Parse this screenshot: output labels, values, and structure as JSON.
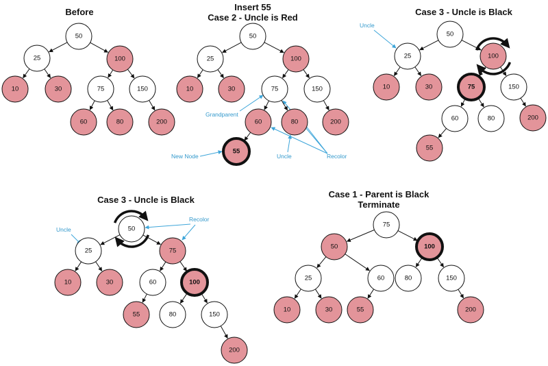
{
  "colors": {
    "red_node": "#e3949a",
    "black_node": "#ffffff",
    "stroke": "#111111",
    "annotation": "#3da5d9",
    "title": "#111111"
  },
  "panels": [
    {
      "id": "before",
      "title_lines": [
        "Before"
      ],
      "nodes": [
        {
          "id": "n50",
          "label": "50",
          "color": "black"
        },
        {
          "id": "n25",
          "label": "25",
          "color": "black"
        },
        {
          "id": "n100",
          "label": "100",
          "color": "red"
        },
        {
          "id": "n10",
          "label": "10",
          "color": "red"
        },
        {
          "id": "n30",
          "label": "30",
          "color": "red"
        },
        {
          "id": "n75",
          "label": "75",
          "color": "black"
        },
        {
          "id": "n150",
          "label": "150",
          "color": "black"
        },
        {
          "id": "n60",
          "label": "60",
          "color": "red"
        },
        {
          "id": "n80",
          "label": "80",
          "color": "red"
        },
        {
          "id": "n200",
          "label": "200",
          "color": "red"
        }
      ],
      "edges": [
        [
          "n50",
          "n25"
        ],
        [
          "n50",
          "n100"
        ],
        [
          "n25",
          "n10"
        ],
        [
          "n25",
          "n30"
        ],
        [
          "n100",
          "n75"
        ],
        [
          "n100",
          "n150"
        ],
        [
          "n75",
          "n60"
        ],
        [
          "n75",
          "n80"
        ],
        [
          "n150",
          "n200"
        ]
      ],
      "annotations": [],
      "rotations": []
    },
    {
      "id": "case2",
      "title_lines": [
        "Insert 55",
        "Case 2 - Uncle is Red"
      ],
      "nodes": [
        {
          "id": "n50",
          "label": "50",
          "color": "black"
        },
        {
          "id": "n25",
          "label": "25",
          "color": "black"
        },
        {
          "id": "n100",
          "label": "100",
          "color": "red"
        },
        {
          "id": "n10",
          "label": "10",
          "color": "red"
        },
        {
          "id": "n30",
          "label": "30",
          "color": "red"
        },
        {
          "id": "n75",
          "label": "75",
          "color": "black"
        },
        {
          "id": "n150",
          "label": "150",
          "color": "black"
        },
        {
          "id": "n60",
          "label": "60",
          "color": "red"
        },
        {
          "id": "n80",
          "label": "80",
          "color": "red"
        },
        {
          "id": "n200",
          "label": "200",
          "color": "red"
        },
        {
          "id": "n55",
          "label": "55",
          "color": "red",
          "highlight": true
        }
      ],
      "edges": [
        [
          "n50",
          "n25"
        ],
        [
          "n50",
          "n100"
        ],
        [
          "n25",
          "n10"
        ],
        [
          "n25",
          "n30"
        ],
        [
          "n100",
          "n75"
        ],
        [
          "n100",
          "n150"
        ],
        [
          "n75",
          "n60"
        ],
        [
          "n75",
          "n80"
        ],
        [
          "n150",
          "n200"
        ],
        [
          "n60",
          "n55"
        ]
      ],
      "annotations": [
        {
          "id": "grandparent",
          "text": "Grandparent"
        },
        {
          "id": "new-node",
          "text": "New Node"
        },
        {
          "id": "uncle",
          "text": "Uncle"
        },
        {
          "id": "recolor",
          "text": "Recolor"
        }
      ],
      "rotations": []
    },
    {
      "id": "case3a",
      "title_lines": [
        "Case 3 - Uncle is Black"
      ],
      "nodes": [
        {
          "id": "n50",
          "label": "50",
          "color": "black"
        },
        {
          "id": "n25",
          "label": "25",
          "color": "black"
        },
        {
          "id": "n100",
          "label": "100",
          "color": "red"
        },
        {
          "id": "n10",
          "label": "10",
          "color": "red"
        },
        {
          "id": "n30",
          "label": "30",
          "color": "red"
        },
        {
          "id": "n75",
          "label": "75",
          "color": "red",
          "highlight": true
        },
        {
          "id": "n150",
          "label": "150",
          "color": "black"
        },
        {
          "id": "n60",
          "label": "60",
          "color": "black"
        },
        {
          "id": "n80",
          "label": "80",
          "color": "black"
        },
        {
          "id": "n200",
          "label": "200",
          "color": "red"
        },
        {
          "id": "n55",
          "label": "55",
          "color": "red"
        }
      ],
      "edges": [
        [
          "n50",
          "n25"
        ],
        [
          "n50",
          "n100"
        ],
        [
          "n25",
          "n10"
        ],
        [
          "n25",
          "n30"
        ],
        [
          "n100",
          "n75"
        ],
        [
          "n100",
          "n150"
        ],
        [
          "n75",
          "n60"
        ],
        [
          "n75",
          "n80"
        ],
        [
          "n150",
          "n200"
        ],
        [
          "n60",
          "n55"
        ]
      ],
      "annotations": [
        {
          "id": "uncle",
          "text": "Uncle"
        }
      ],
      "rotations": [
        {
          "around": "n100"
        }
      ]
    },
    {
      "id": "case3b",
      "title_lines": [
        "Case 3 - Uncle is Black"
      ],
      "nodes": [
        {
          "id": "n50",
          "label": "50",
          "color": "black"
        },
        {
          "id": "n25",
          "label": "25",
          "color": "black"
        },
        {
          "id": "n75",
          "label": "75",
          "color": "red"
        },
        {
          "id": "n10",
          "label": "10",
          "color": "red"
        },
        {
          "id": "n30",
          "label": "30",
          "color": "red"
        },
        {
          "id": "n60",
          "label": "60",
          "color": "black"
        },
        {
          "id": "n100",
          "label": "100",
          "color": "red",
          "highlight": true
        },
        {
          "id": "n55",
          "label": "55",
          "color": "red"
        },
        {
          "id": "n80",
          "label": "80",
          "color": "black"
        },
        {
          "id": "n150",
          "label": "150",
          "color": "black"
        },
        {
          "id": "n200",
          "label": "200",
          "color": "red"
        }
      ],
      "edges": [
        [
          "n50",
          "n25"
        ],
        [
          "n50",
          "n75"
        ],
        [
          "n25",
          "n10"
        ],
        [
          "n25",
          "n30"
        ],
        [
          "n75",
          "n60"
        ],
        [
          "n75",
          "n100"
        ],
        [
          "n60",
          "n55"
        ],
        [
          "n100",
          "n80"
        ],
        [
          "n100",
          "n150"
        ],
        [
          "n150",
          "n200"
        ]
      ],
      "annotations": [
        {
          "id": "uncle",
          "text": "Uncle"
        },
        {
          "id": "recolor",
          "text": "Recolor"
        }
      ],
      "rotations": [
        {
          "around": "n50"
        }
      ]
    },
    {
      "id": "case1",
      "title_lines": [
        "Case 1 - Parent is Black",
        "Terminate"
      ],
      "nodes": [
        {
          "id": "n75",
          "label": "75",
          "color": "black"
        },
        {
          "id": "n50",
          "label": "50",
          "color": "red"
        },
        {
          "id": "n100",
          "label": "100",
          "color": "red",
          "highlight": true
        },
        {
          "id": "n25",
          "label": "25",
          "color": "black"
        },
        {
          "id": "n60",
          "label": "60",
          "color": "black"
        },
        {
          "id": "n80",
          "label": "80",
          "color": "black"
        },
        {
          "id": "n150",
          "label": "150",
          "color": "black"
        },
        {
          "id": "n10",
          "label": "10",
          "color": "red"
        },
        {
          "id": "n30",
          "label": "30",
          "color": "red"
        },
        {
          "id": "n55",
          "label": "55",
          "color": "red"
        },
        {
          "id": "n200",
          "label": "200",
          "color": "red"
        }
      ],
      "edges": [
        [
          "n75",
          "n50"
        ],
        [
          "n75",
          "n100"
        ],
        [
          "n50",
          "n25"
        ],
        [
          "n50",
          "n60"
        ],
        [
          "n100",
          "n80"
        ],
        [
          "n100",
          "n150"
        ],
        [
          "n25",
          "n10"
        ],
        [
          "n25",
          "n30"
        ],
        [
          "n60",
          "n55"
        ],
        [
          "n150",
          "n200"
        ]
      ],
      "annotations": [],
      "rotations": []
    }
  ]
}
